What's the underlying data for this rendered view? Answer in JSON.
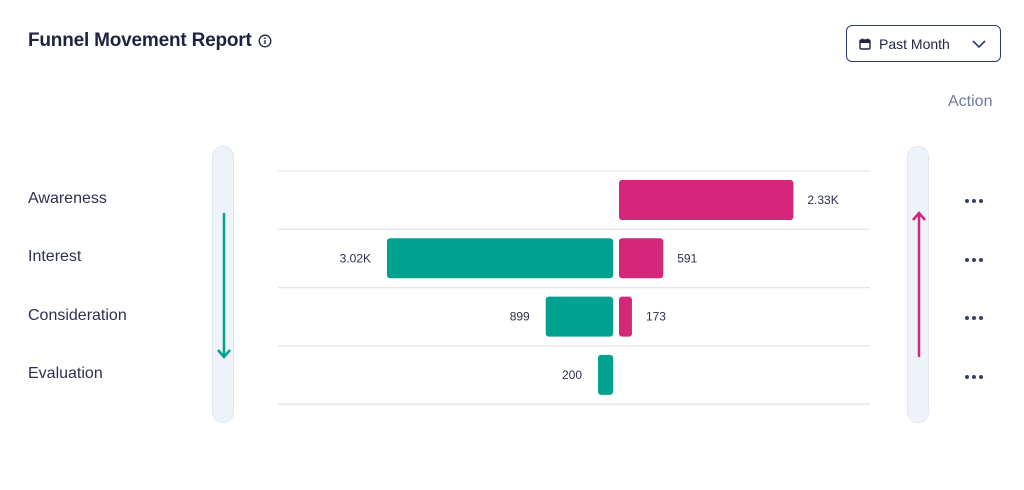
{
  "header": {
    "title": "Funnel Movement Report",
    "period_label": "Past Month"
  },
  "action_label": "Action",
  "icons": [
    "info-icon",
    "calendar-icon",
    "chevron-down-icon",
    "arrow-down-icon",
    "arrow-up-icon",
    "more-horizontal-icon"
  ],
  "colors": {
    "outflow": "#00a28f",
    "inflow": "#d4267a",
    "text": "#1d2340"
  },
  "chart_data": {
    "type": "bar",
    "categories": [
      "Awareness",
      "Interest",
      "Consideration",
      "Evaluation"
    ],
    "series": [
      {
        "values": [
          null,
          3020,
          899,
          200
        ],
        "labels": [
          "",
          "3.02K",
          "899",
          "200"
        ]
      },
      {
        "values": [
          2330,
          591,
          173,
          null
        ],
        "labels": [
          "2.33K",
          "591",
          "173",
          ""
        ]
      }
    ]
  }
}
